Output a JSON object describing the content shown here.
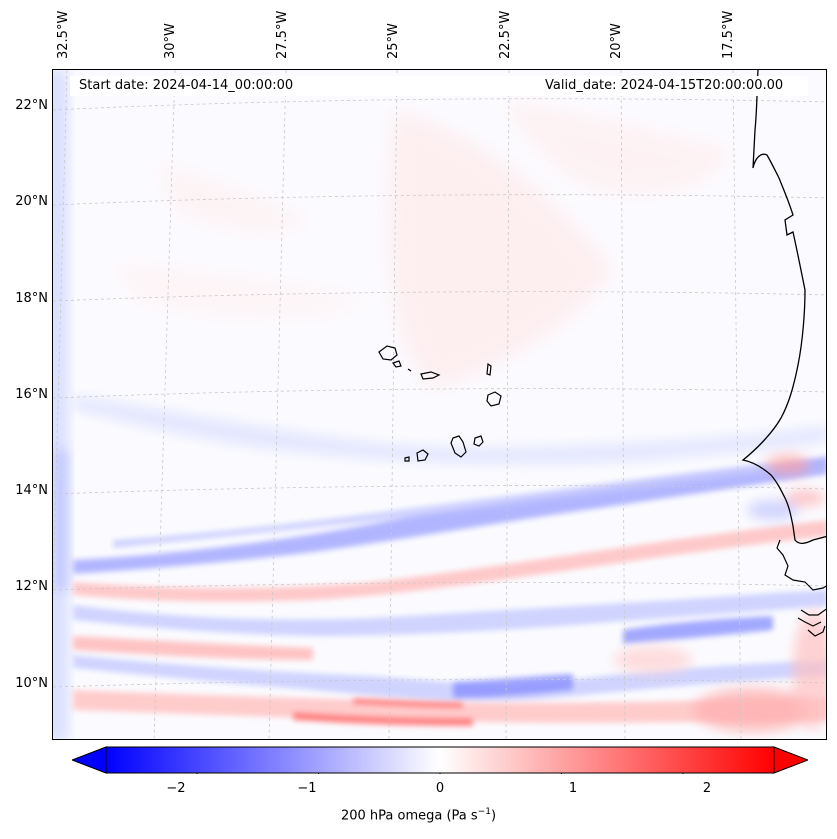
{
  "map": {
    "start_date": "Start date: 2024-04-14_00:00:00",
    "valid_date": "Valid_date: 2024-04-15T20:00:00.00",
    "lon_labels": [
      "32.5°W",
      "30°W",
      "27.5°W",
      "25°W",
      "22.5°W",
      "20°W",
      "17.5°W"
    ],
    "lat_labels": [
      "22°N",
      "20°N",
      "18°N",
      "16°N",
      "14°N",
      "12°N",
      "10°N"
    ],
    "variable": "200 hPa omega",
    "units_prefix": "Pa s",
    "units_exp": "−1",
    "colormap": [
      "#0000ff",
      "#ffffff",
      "#ff0000"
    ],
    "colorbar_range": [
      -2.75,
      2.75
    ],
    "colorbar_ticks": [
      "−2",
      "−1",
      "0",
      "1",
      "2"
    ]
  }
}
